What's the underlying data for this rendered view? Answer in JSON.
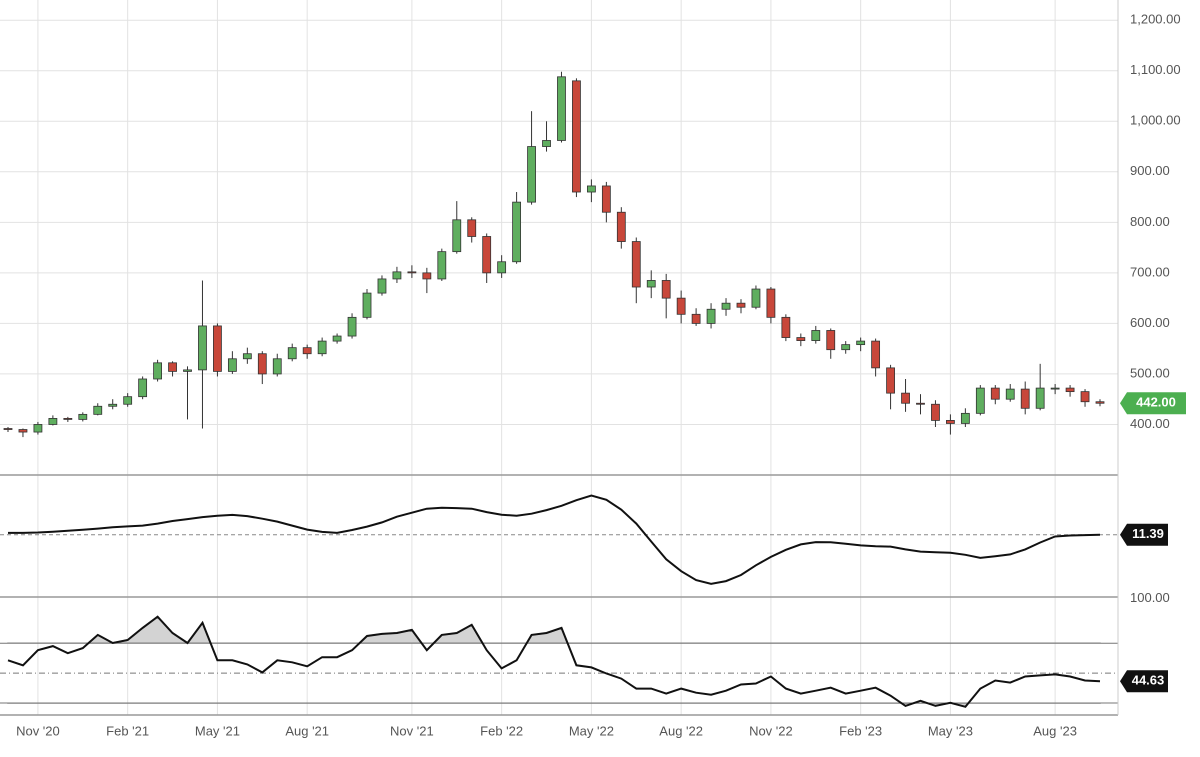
{
  "chart_data": [
    {
      "type": "candlestick",
      "categories": [
        null,
        null,
        "Nov '20",
        null,
        null,
        null,
        null,
        null,
        "Feb '21",
        null,
        null,
        null,
        null,
        null,
        "May '21",
        null,
        null,
        null,
        null,
        null,
        "Aug '21",
        null,
        null,
        null,
        null,
        null,
        null,
        "Nov '21",
        null,
        null,
        null,
        null,
        null,
        "Feb '22",
        null,
        null,
        null,
        null,
        null,
        "May '22",
        null,
        null,
        null,
        null,
        null,
        "Aug '22",
        null,
        null,
        null,
        null,
        null,
        "Nov '22",
        null,
        null,
        null,
        null,
        null,
        "Feb '23",
        null,
        null,
        null,
        null,
        null,
        "May '23",
        null,
        null,
        null,
        null,
        null,
        null,
        "Aug '23",
        null,
        null,
        null
      ],
      "open": [
        392,
        390,
        385,
        400,
        412,
        410,
        420,
        436,
        440,
        455,
        490,
        522,
        505,
        508,
        595,
        505,
        530,
        540,
        500,
        530,
        552,
        540,
        565,
        575,
        612,
        660,
        688,
        702,
        700,
        688,
        742,
        805,
        772,
        700,
        722,
        840,
        950,
        962,
        1080,
        860,
        872,
        820,
        762,
        672,
        685,
        650,
        618,
        600,
        628,
        640,
        632,
        668,
        612,
        572,
        566,
        586,
        548,
        558,
        565,
        512,
        462,
        442,
        440,
        408,
        402,
        422,
        472,
        450,
        470,
        432,
        472,
        472,
        465,
        445
      ],
      "high": [
        395,
        392,
        405,
        418,
        415,
        424,
        442,
        450,
        462,
        495,
        528,
        525,
        515,
        685,
        600,
        545,
        552,
        545,
        540,
        560,
        558,
        572,
        580,
        620,
        668,
        695,
        712,
        715,
        710,
        748,
        842,
        810,
        778,
        735,
        860,
        1020,
        1000,
        1098,
        1085,
        885,
        880,
        830,
        770,
        705,
        698,
        665,
        630,
        640,
        650,
        648,
        675,
        672,
        618,
        580,
        595,
        590,
        565,
        572,
        570,
        518,
        490,
        460,
        448,
        420,
        432,
        478,
        478,
        480,
        485,
        520,
        480,
        478,
        470,
        450
      ],
      "low": [
        385,
        375,
        380,
        398,
        405,
        406,
        418,
        430,
        435,
        450,
        485,
        495,
        410,
        392,
        495,
        500,
        520,
        480,
        495,
        525,
        530,
        535,
        560,
        570,
        608,
        655,
        680,
        690,
        660,
        684,
        738,
        760,
        680,
        690,
        718,
        835,
        940,
        958,
        850,
        840,
        800,
        748,
        640,
        650,
        610,
        600,
        595,
        590,
        615,
        620,
        628,
        600,
        565,
        555,
        560,
        530,
        540,
        545,
        495,
        430,
        425,
        420,
        395,
        380,
        395,
        418,
        440,
        445,
        420,
        428,
        460,
        455,
        435,
        436
      ],
      "close": [
        390,
        385,
        400,
        412,
        410,
        420,
        436,
        440,
        455,
        490,
        522,
        505,
        508,
        595,
        505,
        530,
        540,
        500,
        530,
        552,
        540,
        565,
        575,
        612,
        660,
        688,
        702,
        700,
        688,
        742,
        805,
        772,
        700,
        722,
        840,
        950,
        962,
        1088,
        860,
        872,
        820,
        762,
        672,
        685,
        650,
        618,
        600,
        628,
        640,
        632,
        668,
        612,
        572,
        566,
        586,
        548,
        558,
        565,
        512,
        462,
        442,
        440,
        408,
        402,
        422,
        472,
        450,
        470,
        432,
        472,
        472,
        465,
        445,
        442
      ],
      "close_label": "442.00",
      "up_color": "#5fae5f",
      "down_color": "#c8473a",
      "label_color": "#4caf50",
      "ylim": [
        300,
        1240
      ],
      "yticks": [
        {
          "value": 400,
          "label": "400.00"
        },
        {
          "value": 500,
          "label": "500.00"
        },
        {
          "value": 600,
          "label": "600.00"
        },
        {
          "value": 700,
          "label": "700.00"
        },
        {
          "value": 800,
          "label": "800.00"
        },
        {
          "value": 900,
          "label": "900.00"
        },
        {
          "value": 1000,
          "label": "1,000.00"
        },
        {
          "value": 1100,
          "label": "1,100.00"
        },
        {
          "value": 1200,
          "label": "1,200.00"
        }
      ],
      "grid": true
    },
    {
      "type": "line",
      "color": "#111",
      "values": [
        12.3,
        12.3,
        12.5,
        12.9,
        13.4,
        13.9,
        14.5,
        15.2,
        15.6,
        16.0,
        17.0,
        18.3,
        19.3,
        20.3,
        21.0,
        21.4,
        20.8,
        19.5,
        18.0,
        16.0,
        14.0,
        12.8,
        12.3,
        13.8,
        15.5,
        17.6,
        20.5,
        22.5,
        24.5,
        25.0,
        24.8,
        24.5,
        22.8,
        21.5,
        21.0,
        22.0,
        23.8,
        26.0,
        28.8,
        31.2,
        29.0,
        24.0,
        17.0,
        8.0,
        -1.0,
        -7.0,
        -11.5,
        -13.4,
        -12.0,
        -8.9,
        -4.0,
        0.2,
        3.8,
        6.5,
        7.7,
        7.6,
        6.8,
        6.0,
        5.6,
        5.4,
        4.0,
        2.9,
        2.6,
        2.3,
        1.3,
        -0.3,
        0.5,
        1.5,
        4.0,
        7.5,
        10.5,
        11.0,
        11.2,
        11.39
      ],
      "ylim": [
        -20,
        40
      ]
    },
    {
      "type": "line",
      "color": "#111",
      "fill_color": "#d3d3d3",
      "values": [
        58.6,
        55.3,
        65.4,
        68.1,
        63.4,
        66.8,
        75.6,
        70.2,
        72.2,
        80.3,
        87.8,
        76.9,
        70.2,
        83.7,
        58.6,
        58.6,
        55.9,
        50.5,
        58.6,
        57.3,
        54.6,
        60.7,
        60.7,
        65.4,
        74.9,
        76.3,
        76.9,
        79.0,
        65.4,
        75.6,
        76.9,
        82.4,
        65.4,
        53.2,
        58.6,
        75.6,
        76.9,
        80.3,
        55.3,
        53.9,
        49.8,
        46.4,
        39.7,
        39.7,
        36.3,
        39.7,
        36.9,
        35.6,
        38.3,
        42.4,
        43.1,
        47.8,
        39.7,
        36.3,
        38.3,
        40.3,
        36.3,
        38.3,
        40.3,
        34.9,
        28.1,
        31.5,
        28.1,
        30.2,
        27.5,
        39.7,
        45.1,
        43.7,
        47.8,
        48.5,
        49.2,
        47.8,
        45.1,
        44.63
      ],
      "levels": [
        70,
        30
      ],
      "midline": 50,
      "ylim": [
        22,
        101
      ],
      "yticks": [
        {
          "value": 100,
          "label": "100.00"
        }
      ]
    }
  ]
}
